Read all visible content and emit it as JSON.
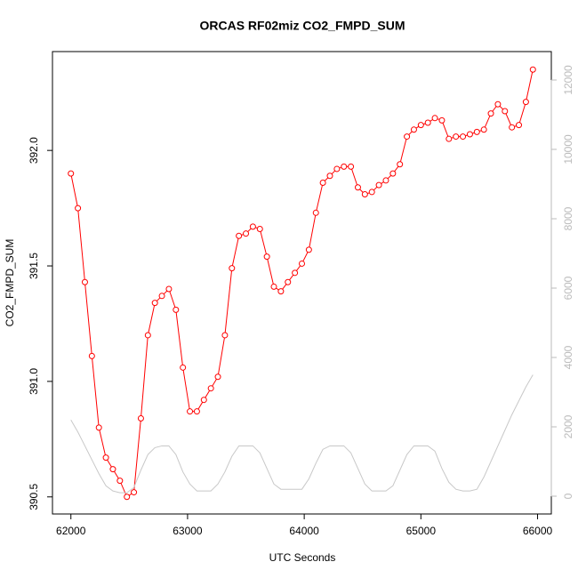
{
  "chart_data": {
    "type": "line",
    "title": "ORCAS RF02miz CO2_FMPD_SUM",
    "x_label": "UTC Seconds",
    "y_label": "CO2_FMPD_SUM",
    "x": [
      62000,
      62060,
      62120,
      62180,
      62240,
      62300,
      62360,
      62420,
      62480,
      62540,
      62600,
      62660,
      62720,
      62780,
      62840,
      62900,
      62960,
      63020,
      63080,
      63140,
      63200,
      63260,
      63320,
      63380,
      63440,
      63500,
      63560,
      63620,
      63680,
      63740,
      63800,
      63860,
      63920,
      63980,
      64040,
      64100,
      64160,
      64220,
      64280,
      64340,
      64400,
      64460,
      64520,
      64580,
      64640,
      64700,
      64760,
      64820,
      64880,
      64940,
      65000,
      65060,
      65120,
      65180,
      65240,
      65300,
      65360,
      65420,
      65480,
      65540,
      65600,
      65660,
      65720,
      65780,
      65840,
      65900,
      65960
    ],
    "series": [
      {
        "color": "#ff0000",
        "values": [
          391.9,
          391.75,
          391.43,
          391.11,
          390.8,
          390.67,
          390.62,
          390.57,
          390.5,
          390.52,
          390.84,
          391.2,
          391.34,
          391.37,
          391.4,
          391.31,
          391.06,
          390.87,
          390.87,
          390.92,
          390.97,
          391.02,
          391.2,
          391.49,
          391.63,
          391.64,
          391.67,
          391.66,
          391.54,
          391.41,
          391.39,
          391.43,
          391.47,
          391.51,
          391.57,
          391.73,
          391.86,
          391.89,
          391.92,
          391.93,
          391.93,
          391.84,
          391.81,
          391.82,
          391.85,
          391.87,
          391.9,
          391.94,
          392.06,
          392.09,
          392.11,
          392.12,
          392.14,
          392.13,
          392.05,
          392.06,
          392.06,
          392.07,
          392.08,
          392.09,
          392.16,
          392.2,
          392.17,
          392.1,
          392.11,
          392.21,
          392.35
        ]
      },
      {
        "color": "#c8c8c8",
        "axis": "y2",
        "values": [
          2200,
          1850,
          1450,
          1050,
          650,
          300,
          150,
          100,
          100,
          250,
          750,
          1200,
          1400,
          1450,
          1450,
          1200,
          700,
          350,
          150,
          150,
          150,
          350,
          700,
          1150,
          1450,
          1450,
          1450,
          1250,
          800,
          350,
          200,
          200,
          200,
          200,
          500,
          950,
          1350,
          1450,
          1450,
          1450,
          1250,
          800,
          350,
          150,
          150,
          150,
          300,
          750,
          1200,
          1450,
          1450,
          1450,
          1300,
          800,
          400,
          200,
          150,
          150,
          200,
          550,
          1000,
          1450,
          1900,
          2350,
          2750,
          3150,
          3500
        ]
      }
    ],
    "xlim": [
      61842,
      66118
    ],
    "xticks": [
      62000,
      63000,
      64000,
      65000,
      66000
    ],
    "ylim": [
      390.426,
      392.428
    ],
    "yticks": [
      390.5,
      {
        "value": 391.0,
        "label": "391.0"
      },
      391.5,
      {
        "value": 392.0,
        "label": "392.0"
      }
    ],
    "y2lim": [
      -513,
      12820
    ],
    "y2ticks": [
      0,
      2000,
      4000,
      6000,
      8000,
      10000,
      12000
    ]
  }
}
